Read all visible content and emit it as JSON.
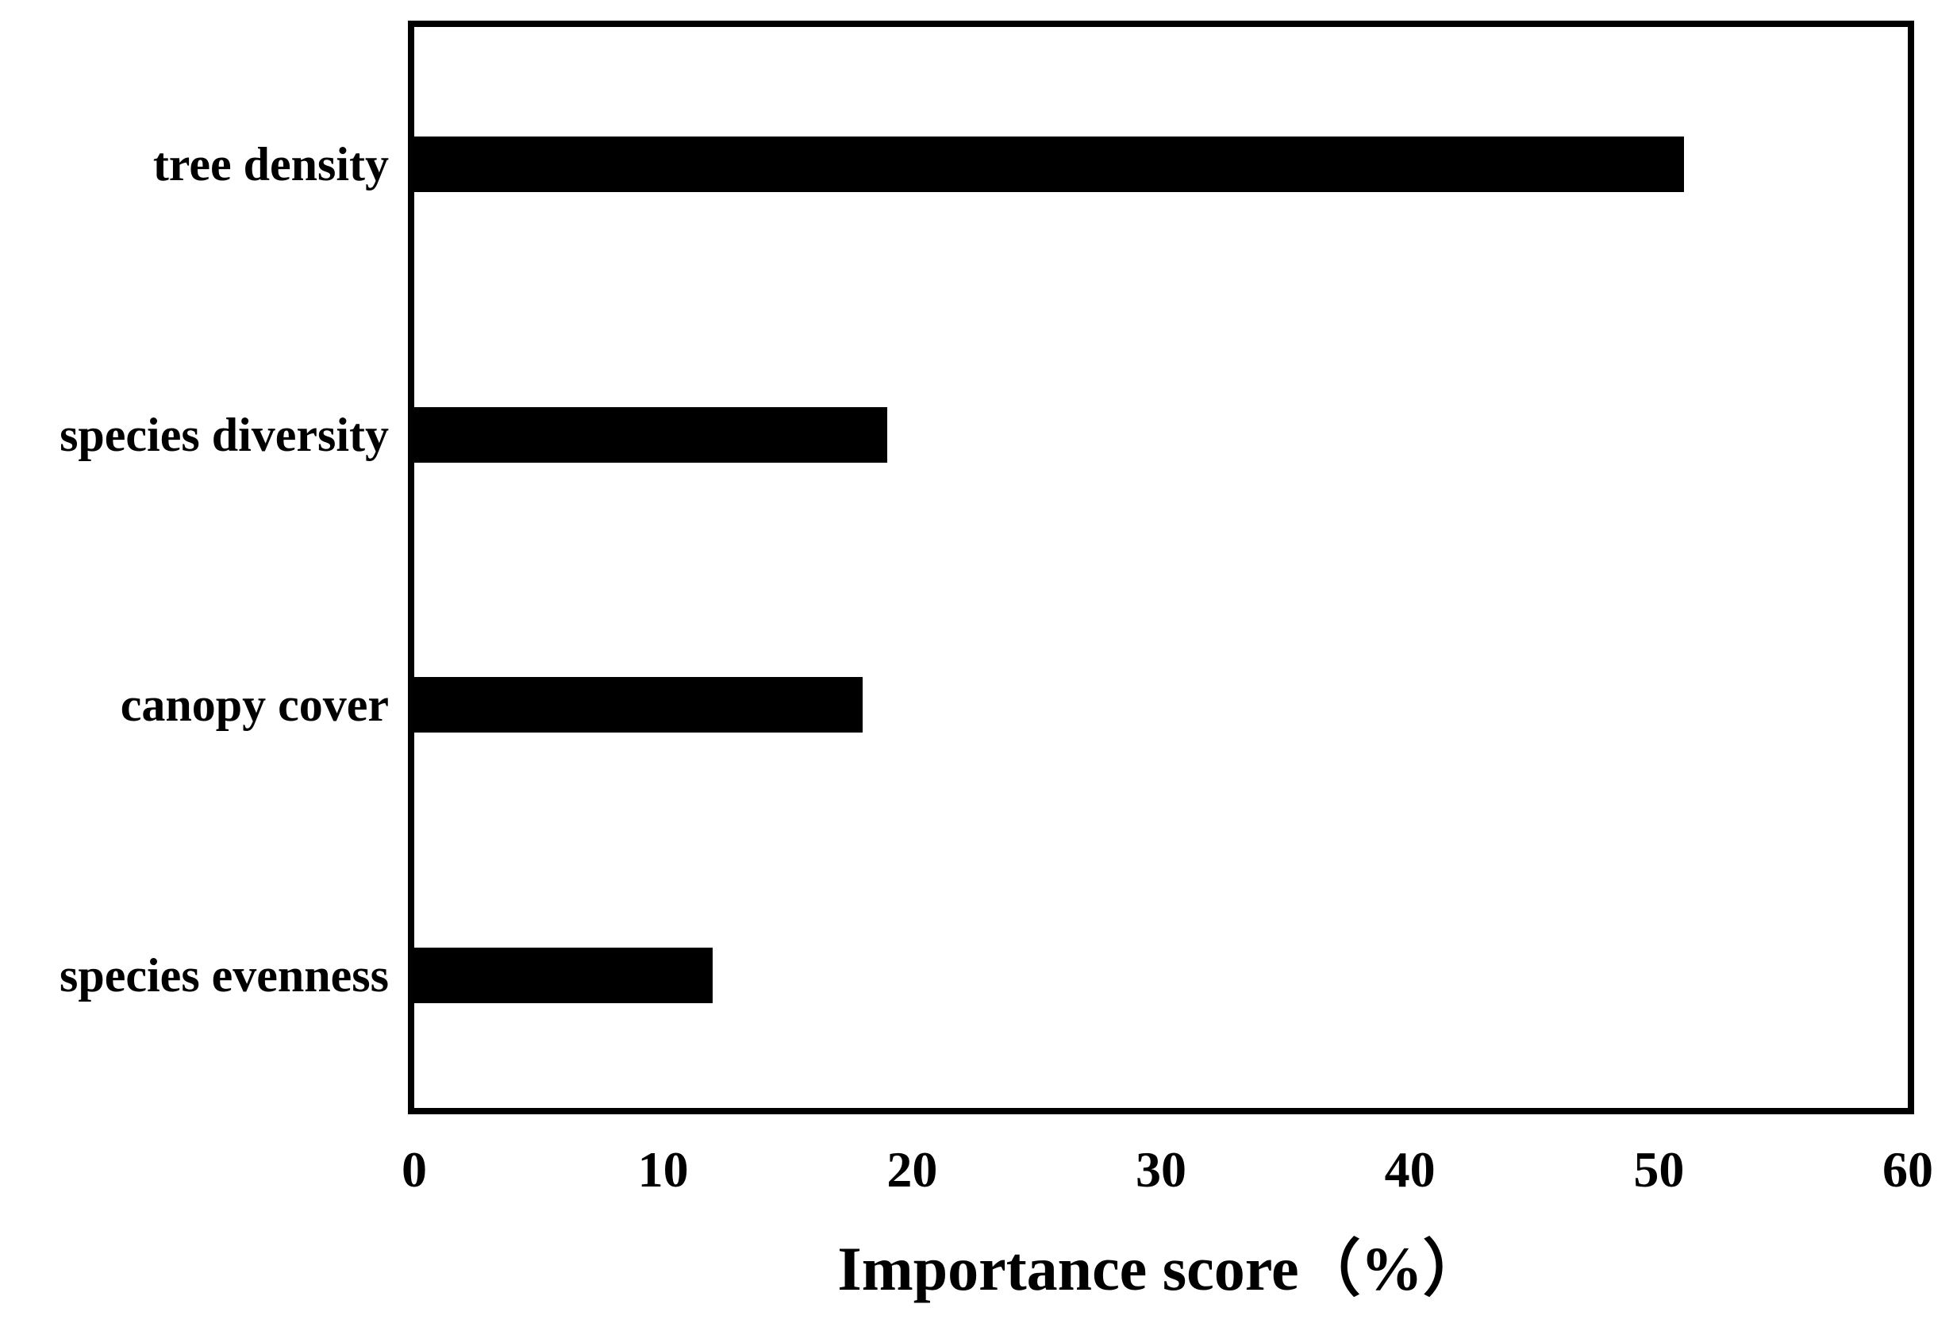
{
  "figure": {
    "background_color": "#ffffff",
    "bar_color": "#000000",
    "axis_color": "#000000",
    "text_color": "#000000"
  },
  "chart_data": {
    "type": "bar",
    "orientation": "horizontal",
    "title": "",
    "xlabel": "Importance score（%）",
    "ylabel": "",
    "categories": [
      "tree density",
      "species diversity",
      "canopy cover",
      "species evenness"
    ],
    "values": [
      51,
      19,
      18,
      12
    ],
    "xlim": [
      0,
      60
    ],
    "xticks": [
      0,
      10,
      20,
      30,
      40,
      50,
      60
    ],
    "grid": false,
    "legend_position": "none"
  }
}
